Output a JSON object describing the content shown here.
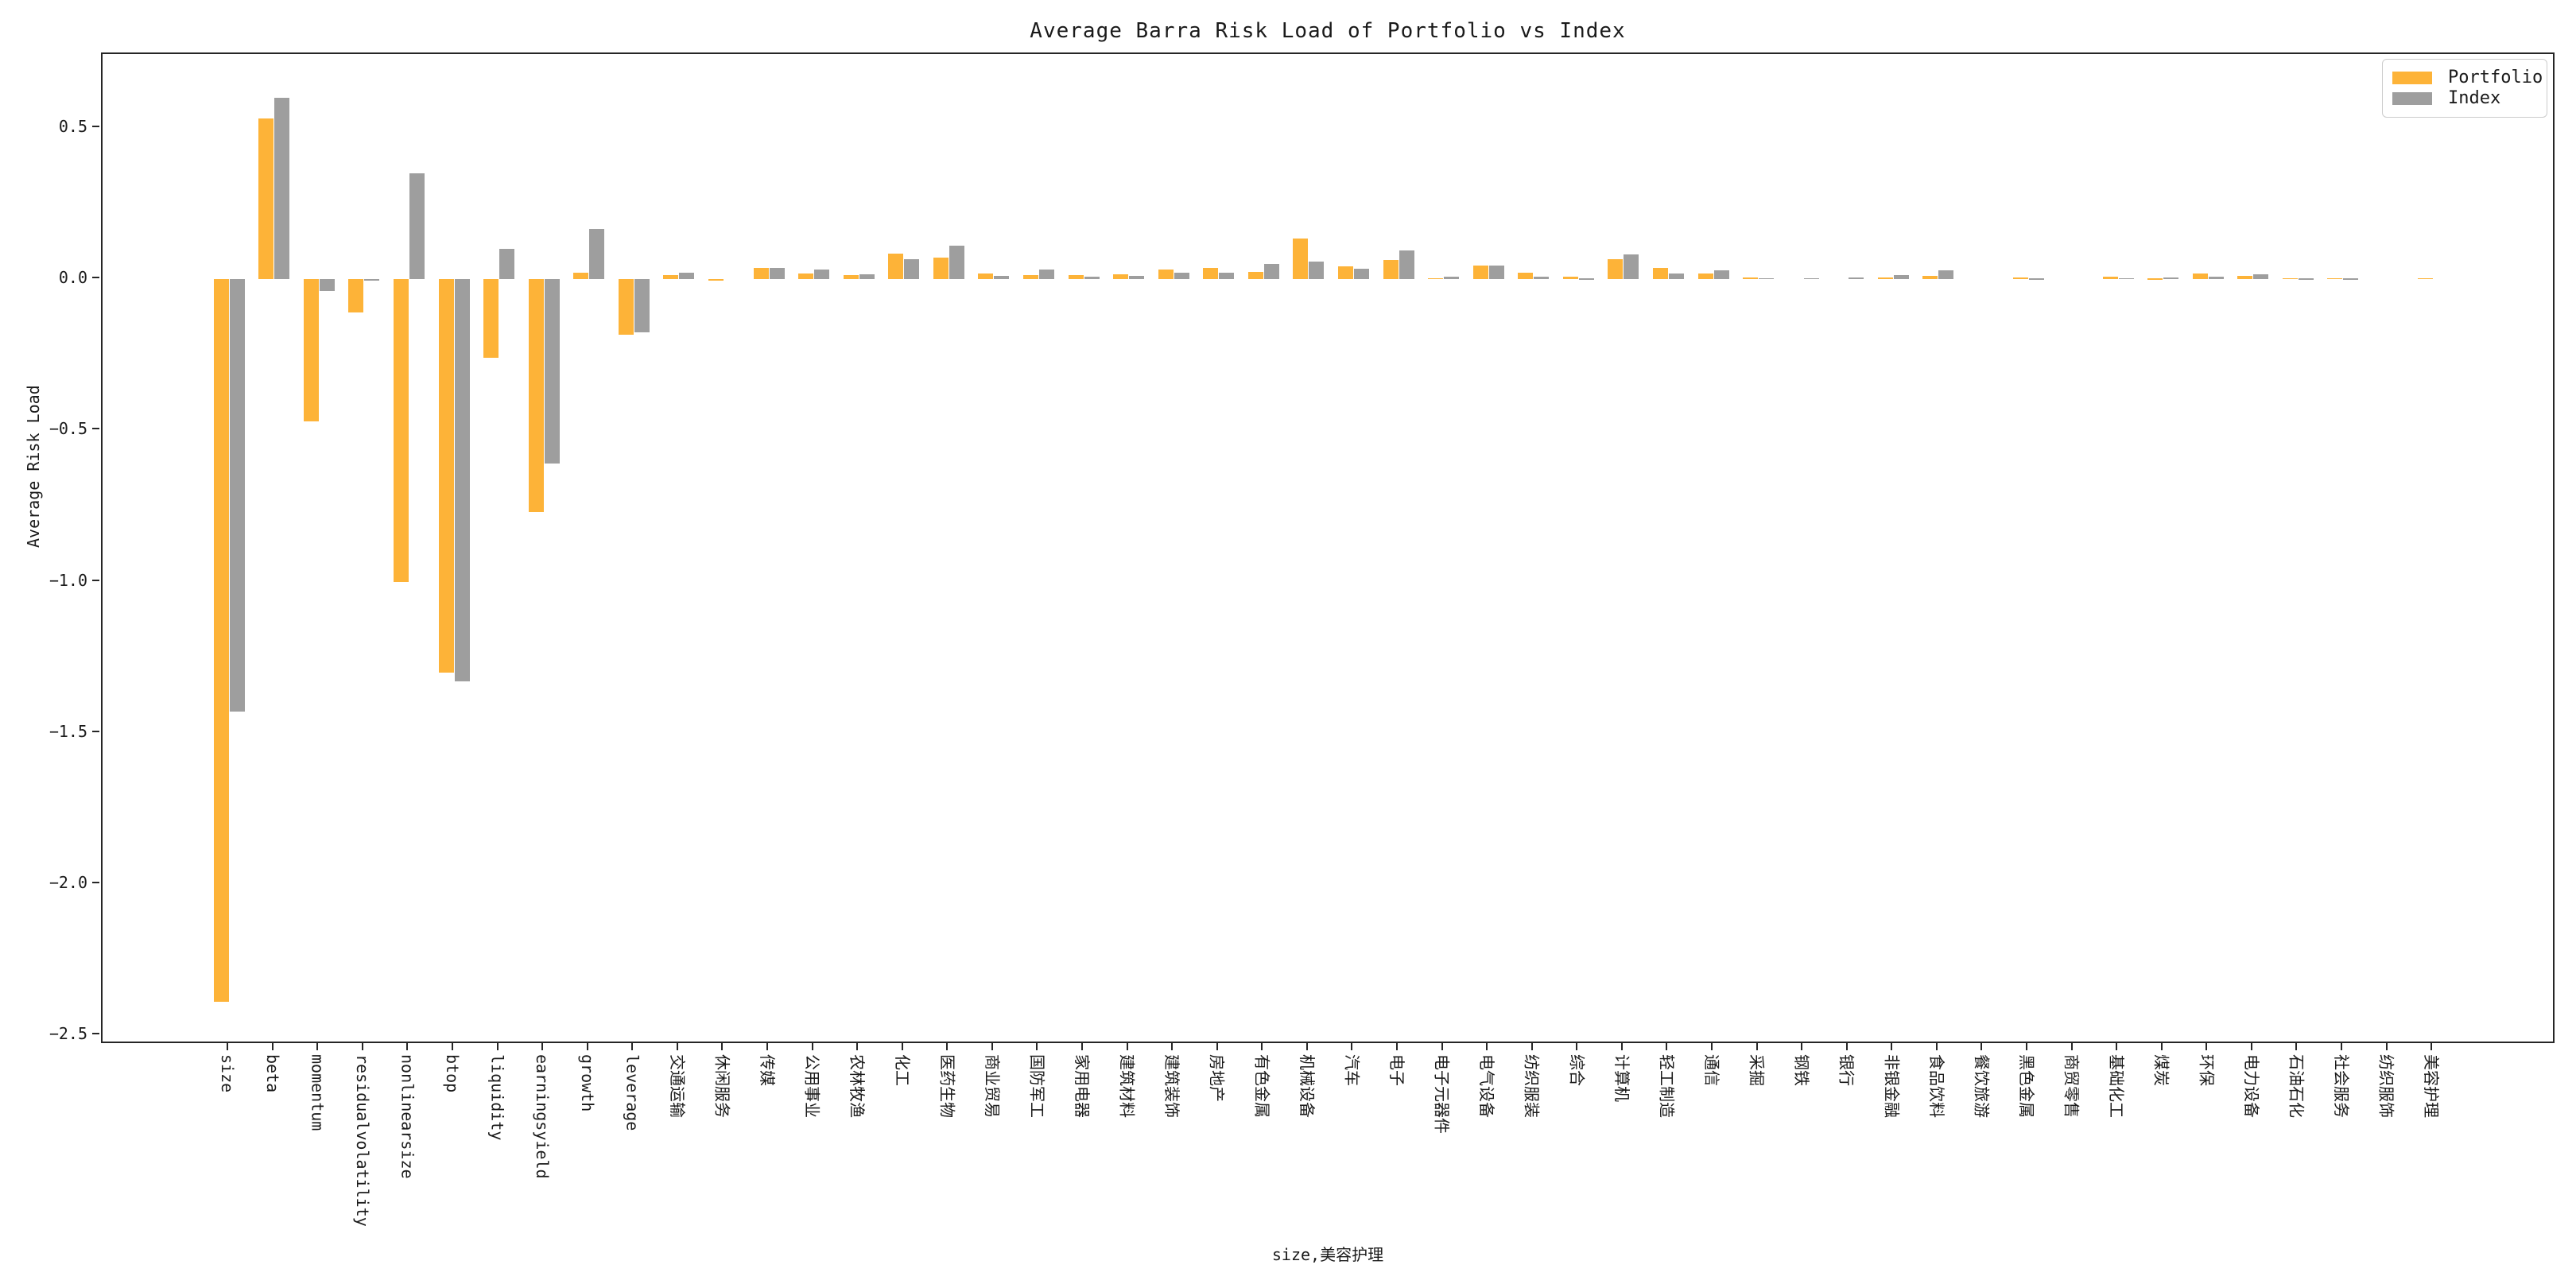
{
  "chart_data": {
    "type": "bar",
    "title": "Average Barra Risk Load of Portfolio vs Index",
    "xlabel": "size,美容护理",
    "ylabel": "Average Risk Load",
    "ylim": [
      -2.531,
      0.744
    ],
    "yticks": [
      0.5,
      0.0,
      -0.5,
      -1.0,
      -1.5,
      -2.0,
      -2.5
    ],
    "ytick_labels": [
      "0.5",
      "0.0",
      "−0.5",
      "−1.0",
      "−1.5",
      "−2.0",
      "−2.5"
    ],
    "grid": false,
    "legend_position": "upper right",
    "categories": [
      "size",
      "beta",
      "momentum",
      "residualvolatility",
      "nonlinearsize",
      "btop",
      "liquidity",
      "earningsyield",
      "growth",
      "leverage",
      "交通运输",
      "休闲服务",
      "传媒",
      "公用事业",
      "农林牧渔",
      "化工",
      "医药生物",
      "商业贸易",
      "国防军工",
      "家用电器",
      "建筑材料",
      "建筑装饰",
      "房地产",
      "有色金属",
      "机械设备",
      "汽车",
      "电子",
      "电子元器件",
      "电气设备",
      "纺织服装",
      "综合",
      "计算机",
      "轻工制造",
      "通信",
      "采掘",
      "钢铁",
      "银行",
      "非银金融",
      "食品饮料",
      "餐饮旅游",
      "黑色金属",
      "商贸零售",
      "基础化工",
      "煤炭",
      "环保",
      "电力设备",
      "石油石化",
      "社会服务",
      "纺织服饰",
      "美容护理"
    ],
    "series": [
      {
        "name": "Portfolio",
        "color": "#FDB338",
        "values": [
          -2.39,
          0.53,
          -0.47,
          -0.11,
          -1.0,
          -1.3,
          -0.26,
          -0.77,
          0.02,
          -0.185,
          0.013,
          -0.005,
          0.036,
          0.018,
          0.013,
          0.085,
          0.07,
          0.018,
          0.014,
          0.012,
          0.016,
          0.032,
          0.037,
          0.023,
          0.135,
          0.043,
          0.063,
          0.004,
          0.046,
          0.022,
          0.007,
          0.065,
          0.037,
          0.019,
          0.005,
          0,
          0,
          0.006,
          0.01,
          0,
          0.006,
          0,
          0.008,
          0.002,
          0.018,
          0.01,
          0.003,
          0.003,
          0,
          0.003
        ]
      },
      {
        "name": "Index",
        "color": "#9E9E9E",
        "values": [
          -1.43,
          0.6,
          -0.04,
          -0.005,
          0.35,
          -1.33,
          0.1,
          -0.61,
          0.165,
          -0.175,
          0.02,
          0,
          0.037,
          0.032,
          0.017,
          0.067,
          0.111,
          0.01,
          0.033,
          0.009,
          0.011,
          0.022,
          0.022,
          0.049,
          0.059,
          0.035,
          0.095,
          0.007,
          0.045,
          0.009,
          0.002,
          0.082,
          0.018,
          0.028,
          0.004,
          0.003,
          0.006,
          0.012,
          0.029,
          0,
          0.002,
          0,
          0.003,
          0.005,
          0.008,
          0.015,
          0.002,
          0.002,
          0,
          0
        ]
      }
    ]
  }
}
